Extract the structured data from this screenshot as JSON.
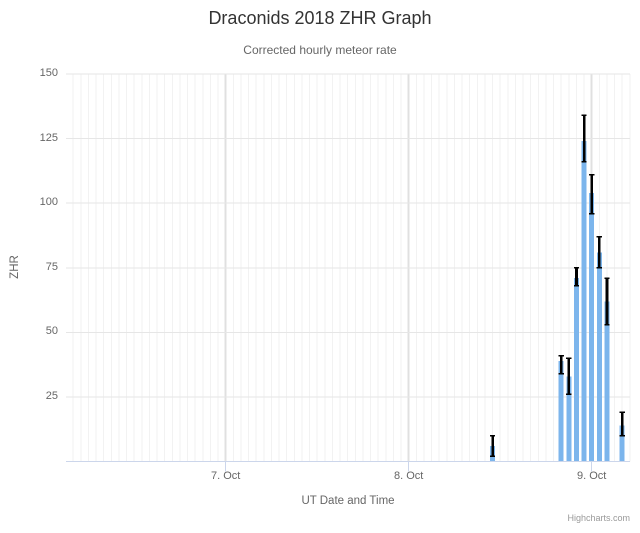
{
  "chart_data": {
    "type": "bar",
    "orientation": "vertical-columns-with-error-bars",
    "title": "Draconids 2018 ZHR Graph",
    "subtitle": "Corrected hourly meteor rate",
    "xlabel": "UT Date and Time",
    "ylabel": "ZHR",
    "ylim": [
      0,
      150
    ],
    "yticks": [
      25,
      50,
      75,
      100,
      125,
      150
    ],
    "xticks": [
      {
        "label": "7. Oct",
        "day_offset": -2
      },
      {
        "label": "8. Oct",
        "day_offset": -1
      },
      {
        "label": "9. Oct",
        "day_offset": 0
      }
    ],
    "grid": {
      "horizontal": true,
      "vertical_major_per_day": true,
      "vertical_minor_per_hour": true
    },
    "legend_position": "none",
    "bar_color": "#7cb5ec",
    "error_color": "#010101",
    "series": [
      {
        "name": "ZHR",
        "points": [
          {
            "time": "8 Oct 11:00 UT",
            "hours_from_oct9": -13,
            "zhr": 6,
            "err_low": 2,
            "err_high": 10
          },
          {
            "time": "8 Oct 20:00 UT",
            "hours_from_oct9": -4,
            "zhr": 39,
            "err_low": 34,
            "err_high": 41
          },
          {
            "time": "8 Oct 21:00 UT",
            "hours_from_oct9": -3,
            "zhr": 33,
            "err_low": 26,
            "err_high": 40
          },
          {
            "time": "8 Oct 22:00 UT",
            "hours_from_oct9": -2,
            "zhr": 71,
            "err_low": 68,
            "err_high": 75
          },
          {
            "time": "8 Oct 23:00 UT",
            "hours_from_oct9": -1,
            "zhr": 124,
            "err_low": 116,
            "err_high": 134
          },
          {
            "time": "9 Oct 00:00 UT",
            "hours_from_oct9": 0,
            "zhr": 104,
            "err_low": 96,
            "err_high": 111
          },
          {
            "time": "9 Oct 01:00 UT",
            "hours_from_oct9": 1,
            "zhr": 81,
            "err_low": 75,
            "err_high": 87
          },
          {
            "time": "9 Oct 02:00 UT",
            "hours_from_oct9": 2,
            "zhr": 62,
            "err_low": 53,
            "err_high": 71
          },
          {
            "time": "9 Oct 04:00 UT",
            "hours_from_oct9": 4,
            "zhr": 14,
            "err_low": 10,
            "err_high": 19
          }
        ]
      }
    ],
    "credits": "Highcharts.com"
  },
  "colors": {
    "title": "#333333",
    "text_muted": "#666666",
    "axis_line": "#ccd6eb",
    "grid_major_vertical": "#e0e0e0",
    "grid_minor_vertical": "#f2f2f2",
    "grid_horizontal": "#e6e6e6",
    "credits_text": "#999999",
    "bar": "#7cb5ec",
    "error_bar": "#010101"
  }
}
